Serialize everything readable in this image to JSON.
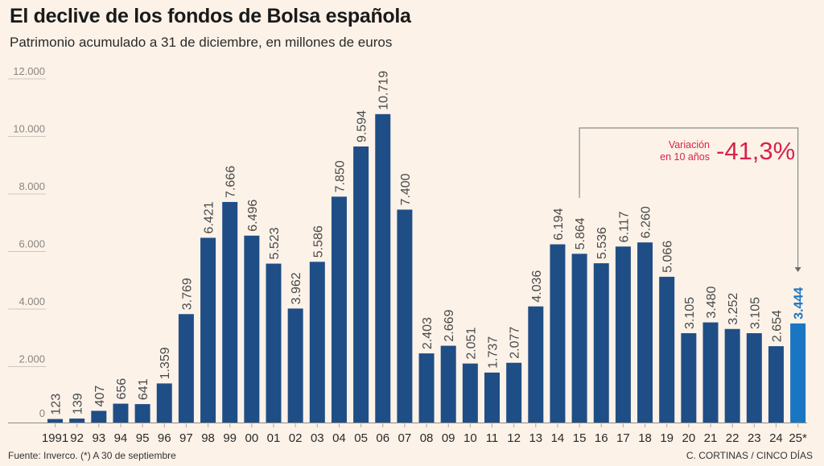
{
  "chart_data": {
    "type": "bar",
    "title": "El declive de los fondos de Bolsa española",
    "subtitle": "Patrimonio acumulado a 31 de diciembre, en millones de euros",
    "xlabel": "",
    "ylabel": "",
    "ylim": [
      0,
      12000
    ],
    "yticks": [
      0,
      2000,
      4000,
      6000,
      8000,
      10000,
      12000
    ],
    "ytick_labels": [
      "0",
      "2.000",
      "4.000",
      "6.000",
      "8.000",
      "10.000",
      "12.000"
    ],
    "grid": true,
    "categories": [
      "1991",
      "92",
      "93",
      "94",
      "95",
      "96",
      "97",
      "98",
      "99",
      "00",
      "01",
      "02",
      "03",
      "04",
      "05",
      "06",
      "07",
      "08",
      "09",
      "10",
      "11",
      "12",
      "13",
      "14",
      "15",
      "16",
      "17",
      "18",
      "19",
      "20",
      "21",
      "22",
      "23",
      "24",
      "25*"
    ],
    "values": [
      123,
      139,
      407,
      656,
      641,
      1359,
      3769,
      6421,
      7666,
      6496,
      5523,
      3962,
      5586,
      7850,
      9594,
      10719,
      7400,
      2403,
      2669,
      2051,
      1737,
      2077,
      4036,
      6194,
      5864,
      5536,
      6117,
      6260,
      5066,
      3105,
      3480,
      3252,
      3105,
      2654,
      3444
    ],
    "value_labels": [
      "123",
      "139",
      "407",
      "656",
      "641",
      "1.359",
      "3.769",
      "6.421",
      "7.666",
      "6.496",
      "5.523",
      "3.962",
      "5.586",
      "7.850",
      "9.594",
      "10.719",
      "7.400",
      "2.403",
      "2.669",
      "2.051",
      "1.737",
      "2.077",
      "4.036",
      "6.194",
      "5.864",
      "5.536",
      "6.117",
      "6.260",
      "5.066",
      "3.105",
      "3.480",
      "3.252",
      "3.105",
      "2.654",
      "3.444"
    ],
    "highlight_index": 34,
    "annotation": {
      "from_category": "15",
      "to_category": "25*",
      "label_line1": "Variación",
      "label_line2": "en 10 años",
      "value": "-41,3%"
    },
    "colors": {
      "bar": "#1f4e86",
      "highlight_bar": "#1a75c2",
      "annotation": "#d9224a",
      "grid": "#cfc6bd",
      "axis_text": "#8a8580",
      "value_text": "#4a4a4a"
    }
  },
  "footer": {
    "source": "Fuente: Inverco. (*) A 30 de septiembre",
    "credit": "C. CORTINAS / CINCO DÍAS"
  }
}
